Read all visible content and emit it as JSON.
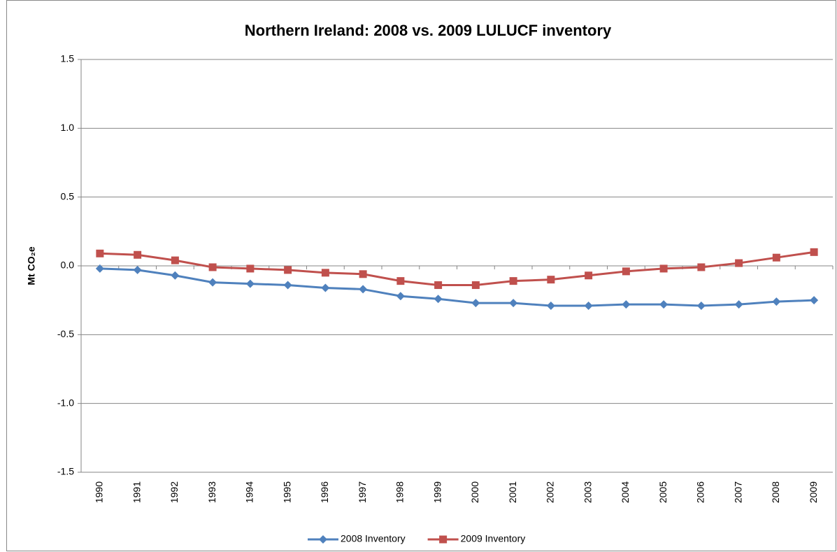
{
  "chart_data": {
    "type": "line",
    "title": "Northern Ireland: 2008 vs. 2009 LULUCF inventory",
    "y_label": "Mt CO₂e",
    "categories": [
      "1990",
      "1991",
      "1992",
      "1993",
      "1994",
      "1995",
      "1996",
      "1997",
      "1998",
      "1999",
      "2000",
      "2001",
      "2002",
      "2003",
      "2004",
      "2005",
      "2006",
      "2007",
      "2008",
      "2009"
    ],
    "series": [
      {
        "name": "2008 Inventory",
        "color": "#4f81bd",
        "marker": "diamond",
        "values": [
          -0.02,
          -0.03,
          -0.07,
          -0.12,
          -0.13,
          -0.14,
          -0.16,
          -0.17,
          -0.22,
          -0.24,
          -0.27,
          -0.27,
          -0.29,
          -0.29,
          -0.28,
          -0.28,
          -0.29,
          -0.28,
          -0.26,
          -0.25
        ]
      },
      {
        "name": "2009 Inventory",
        "color": "#c0504d",
        "marker": "square",
        "values": [
          0.09,
          0.08,
          0.04,
          -0.01,
          -0.02,
          -0.03,
          -0.05,
          -0.06,
          -0.11,
          -0.14,
          -0.14,
          -0.11,
          -0.1,
          -0.07,
          -0.04,
          -0.02,
          -0.01,
          0.02,
          0.06,
          0.1
        ]
      }
    ],
    "ylim": [
      -1.5,
      1.5
    ],
    "yticks": [
      -1.5,
      {
        "value": -1.0,
        "label": "-1.0"
      },
      -0.5,
      {
        "value": 0.0,
        "label": "0.0"
      },
      0.5,
      {
        "value": 1.0,
        "label": "1.0"
      },
      1.5
    ],
    "grid": true,
    "legend": "bottom"
  }
}
